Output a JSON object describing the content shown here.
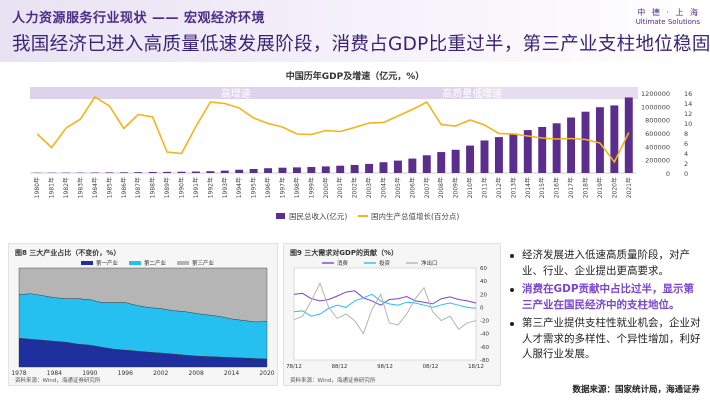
{
  "header": {
    "section_title": "人力资源服务行业现状 —— 宏观经济环境",
    "headline": "我国经济已进入高质量低速发展阶段，消费占GDP比重过半，第三产业支柱地位稳固",
    "logo_cn": "中 德 · 上 海",
    "logo_en": "Ultimate Solutions"
  },
  "bullets": [
    {
      "text": "经济发展进入低速高质量阶段，对产业、行业、企业提出更高要求。",
      "highlight": false
    },
    {
      "text": "消费在GDP贡献中占比过半，显示第三产业在国民经济中的支柱地位。",
      "highlight": true
    },
    {
      "text": "第三产业提供支柱性就业机会，企业对人才需求的多样性、个异性增加，利好人服行业发展。",
      "highlight": false
    }
  ],
  "source": "数据来源：国家统计局，海通证券",
  "colors": {
    "purple": "#5b2d8c",
    "gold": "#f2b418",
    "band": "#ddd3ec",
    "headline": "#3a2377"
  },
  "chart_data": [
    {
      "type": "bar+line",
      "title": "中国历年GDP及增速（亿元，%）",
      "band_labels": [
        "高增速",
        "高质量低增速"
      ],
      "categories": [
        "1980年",
        "1981年",
        "1982年",
        "1983年",
        "1984年",
        "1985年",
        "1986年",
        "1987年",
        "1988年",
        "1989年",
        "1990年",
        "1991年",
        "1992年",
        "1993年",
        "1994年",
        "1995年",
        "1996年",
        "1997年",
        "1998年",
        "1999年",
        "2000年",
        "2001年",
        "2002年",
        "2003年",
        "2004年",
        "2005年",
        "2006年",
        "2007年",
        "2008年",
        "2009年",
        "2010年",
        "2011年",
        "2012年",
        "2013年",
        "2014年",
        "2015年",
        "2016年",
        "2017年",
        "2018年",
        "2019年",
        "2020年",
        "2021年"
      ],
      "series": [
        {
          "name": "国民总收入(亿元)",
          "axis": "left",
          "kind": "bar",
          "values": [
            4600,
            4900,
            5300,
            6000,
            7300,
            9100,
            10400,
            12200,
            15200,
            17200,
            18900,
            22000,
            27200,
            35600,
            48800,
            60400,
            71800,
            79700,
            84400,
            89700,
            99100,
            109300,
            120500,
            136600,
            161400,
            185900,
            216300,
            265800,
            314000,
            348500,
            411300,
            487900,
            538600,
            592900,
            643600,
            690900,
            745600,
            832000,
            919300,
            986500,
            1013600,
            1133500
          ]
        },
        {
          "name": "国内生产总值增长(百分点)",
          "axis": "right",
          "kind": "line",
          "values": [
            7.8,
            5.1,
            9.0,
            10.8,
            15.2,
            13.4,
            8.9,
            11.7,
            11.2,
            4.2,
            3.9,
            9.3,
            14.2,
            13.9,
            13.0,
            11.0,
            9.9,
            9.2,
            7.8,
            7.7,
            8.5,
            8.3,
            9.1,
            10.0,
            10.1,
            11.4,
            12.7,
            14.2,
            9.7,
            9.4,
            10.6,
            9.6,
            7.9,
            7.8,
            7.4,
            7.0,
            6.8,
            6.9,
            6.7,
            6.0,
            2.2,
            8.1
          ]
        }
      ],
      "ylim_left": [
        0,
        1200000
      ],
      "yticks_left": [
        "0",
        "200000",
        "400000",
        "600000",
        "800000",
        "1000000",
        "1200000"
      ],
      "ylim_right": [
        0,
        16
      ],
      "yticks_right": [
        "0",
        "2",
        "4",
        "6",
        "8",
        "10",
        "12",
        "14",
        "16"
      ],
      "legend": [
        "国民总收入(亿元)",
        "国内生产总值增长(百分点)"
      ]
    },
    {
      "type": "area",
      "title": "图8   三大产业占比（不变价，%）",
      "legend": [
        "第一产业",
        "第二产业",
        "第三产业"
      ],
      "x": [
        1978,
        1980,
        1982,
        1984,
        1986,
        1988,
        1990,
        1992,
        1994,
        1996,
        1998,
        2000,
        2002,
        2004,
        2006,
        2008,
        2010,
        2012,
        2014,
        2016,
        2018,
        2020
      ],
      "xticks": [
        "1978",
        "1984",
        "1990",
        "1996",
        "2002",
        "2008",
        "2014",
        "2020"
      ],
      "yticks": [
        "0%",
        "10%",
        "20%",
        "30%",
        "40%",
        "50%",
        "60%",
        "70%",
        "80%",
        "90%",
        "100%"
      ],
      "series": [
        {
          "name": "第一产业",
          "values": [
            29,
            28,
            27,
            26,
            25,
            23,
            22,
            20,
            18,
            17,
            16,
            15,
            14,
            13,
            12,
            11,
            10.5,
            10,
            9.5,
            9,
            8.5,
            8
          ]
        },
        {
          "name": "第二产业",
          "values": [
            44,
            46,
            45,
            44,
            44,
            46,
            46,
            45,
            47,
            48,
            46,
            45,
            45,
            44,
            44,
            43,
            42,
            41,
            39,
            38,
            37,
            38
          ]
        },
        {
          "name": "第三产业",
          "values": [
            27,
            26,
            28,
            30,
            31,
            31,
            32,
            35,
            35,
            35,
            38,
            40,
            41,
            43,
            44,
            46,
            47.5,
            49,
            51.5,
            53,
            54.5,
            54
          ]
        }
      ],
      "footnote": "资料来源：Wind，海通证券研究所"
    },
    {
      "type": "line",
      "title": "图9   三大需求对GDP的贡献（%）",
      "legend": [
        "消费",
        "投资",
        "净出口"
      ],
      "xticks": [
        "78/12",
        "88/12",
        "98/12",
        "08/12",
        "18/12"
      ],
      "yticks_left": [
        "0",
        "20",
        "40",
        "60",
        "80",
        "100",
        "120"
      ],
      "yticks_right": [
        "-80",
        "-60",
        "-40",
        "-20",
        "0",
        "20",
        "40",
        "60"
      ],
      "series": [
        {
          "name": "消费",
          "values": [
            70,
            72,
            60,
            55,
            58,
            66,
            75,
            78,
            62,
            55,
            45,
            58,
            60,
            65,
            55,
            52,
            48,
            60,
            64,
            58,
            55,
            50
          ]
        },
        {
          "name": "投资",
          "values": [
            30,
            32,
            20,
            25,
            38,
            45,
            40,
            55,
            62,
            70,
            55,
            48,
            45,
            52,
            50,
            45,
            40,
            46,
            50,
            45,
            40,
            38
          ]
        },
        {
          "name": "净出口",
          "values": [
            12,
            20,
            55,
            95,
            40,
            15,
            25,
            10,
            -20,
            35,
            70,
            5,
            0,
            25,
            60,
            85,
            30,
            10,
            20,
            -10,
            5,
            10
          ]
        }
      ],
      "footnote": "资料来源：Wind，海通证券研究所"
    }
  ]
}
